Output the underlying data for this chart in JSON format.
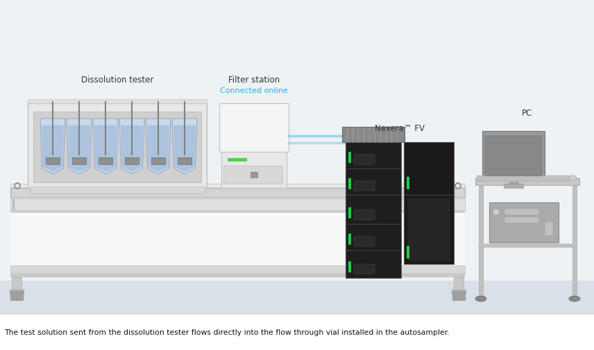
{
  "label_dissolution": "Dissolution tester",
  "label_filter": "Filter station",
  "label_connected": "Connected online",
  "label_nexera": "Nexera™ FV",
  "label_pc": "PC",
  "caption": "The test solution sent from the dissolution tester flows directly into the flow through vial installed in the autosampler.",
  "connected_color": "#29abe2",
  "vessel_blue": "#b8c8e0",
  "vessel_blue_dark": "#8faac8",
  "bg_top": "#f0f4f6",
  "bg_floor": "#dce4ea",
  "table_white": "#f5f5f5",
  "table_gray": "#d0d0d0",
  "table_dark": "#b0b0b0"
}
